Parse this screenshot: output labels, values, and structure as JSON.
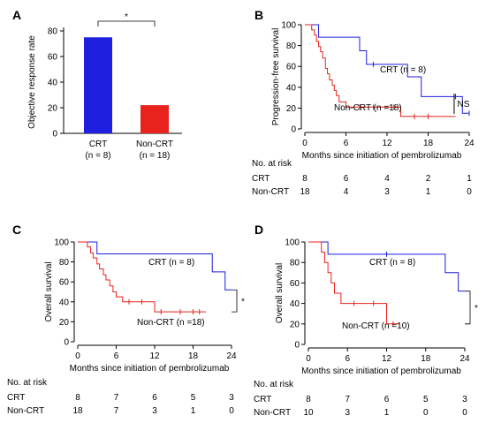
{
  "colors": {
    "crt": "#1f1fe0",
    "noncrt": "#e8221c",
    "axis": "#000000"
  },
  "panels": [
    {
      "id": "A",
      "letter": "A",
      "chart_data": {
        "type": "bar",
        "ylabel": "Objective response rate",
        "ylim": [
          0,
          80
        ],
        "yticks": [
          0,
          20,
          40,
          60,
          80
        ],
        "categories": [
          "CRT",
          "Non-CRT"
        ],
        "category_sublabels": [
          "(n = 8)",
          "(n = 18)"
        ],
        "values": [
          75,
          22
        ],
        "bar_colors": [
          "#1f1fe0",
          "#e8221c"
        ],
        "significance": "*"
      }
    },
    {
      "id": "B",
      "letter": "B",
      "chart_data": {
        "type": "line",
        "step": true,
        "ylabel": "Progression-free survival",
        "xlabel": "Months since initiation of pembrolizumab",
        "xlim": [
          0,
          24
        ],
        "ylim": [
          0,
          100
        ],
        "xticks": [
          0,
          6,
          12,
          18,
          24
        ],
        "yticks": [
          0,
          20,
          40,
          60,
          80,
          100
        ],
        "series": [
          {
            "name": "CRT (n = 8)",
            "color": "#1f1fe0",
            "points": [
              [
                0,
                100
              ],
              [
                2,
                88
              ],
              [
                8,
                75
              ],
              [
                9,
                62
              ],
              [
                15,
                50
              ],
              [
                17,
                31
              ],
              [
                23,
                15
              ],
              [
                24,
                15
              ]
            ],
            "censors": [
              [
                10,
                62
              ],
              [
                22,
                31
              ],
              [
                24,
                15
              ]
            ]
          },
          {
            "name": "Non-CRT (n =18)",
            "color": "#e8221c",
            "points": [
              [
                0,
                100
              ],
              [
                1,
                95
              ],
              [
                1.4,
                90
              ],
              [
                1.7,
                84
              ],
              [
                2,
                79
              ],
              [
                2.3,
                74
              ],
              [
                2.6,
                68
              ],
              [
                3,
                58
              ],
              [
                3.3,
                53
              ],
              [
                3.6,
                47
              ],
              [
                4,
                42
              ],
              [
                4.3,
                37
              ],
              [
                4.6,
                32
              ],
              [
                5,
                26
              ],
              [
                6,
                21
              ],
              [
                14,
                12
              ],
              [
                22,
                12
              ]
            ],
            "censors": [
              [
                8,
                21
              ],
              [
                10,
                21
              ],
              [
                13,
                21
              ],
              [
                16,
                12
              ],
              [
                18,
                12
              ]
            ]
          }
        ],
        "annotation": "NS",
        "risk_table": {
          "title": "No. at risk",
          "times": [
            0,
            6,
            12,
            18,
            24
          ],
          "rows": [
            {
              "label": "CRT",
              "values": [
                "8",
                "6",
                "4",
                "2",
                "1"
              ]
            },
            {
              "label": "Non-CRT",
              "values": [
                "18",
                "4",
                "3",
                "1",
                "0"
              ]
            }
          ]
        }
      }
    },
    {
      "id": "C",
      "letter": "C",
      "chart_data": {
        "type": "line",
        "step": true,
        "ylabel": "Overall survival",
        "xlabel": "Months since initiation of pembrolizumab",
        "xlim": [
          0,
          24
        ],
        "ylim": [
          0,
          100
        ],
        "xticks": [
          0,
          6,
          12,
          18,
          24
        ],
        "yticks": [
          0,
          20,
          40,
          60,
          80,
          100
        ],
        "series": [
          {
            "name": "CRT (n = 8)",
            "color": "#1f1fe0",
            "points": [
              [
                0,
                100
              ],
              [
                3,
                88
              ],
              [
                21,
                70
              ],
              [
                23,
                52
              ],
              [
                24,
                52
              ]
            ],
            "censors": []
          },
          {
            "name": "Non-CRT (n =18)",
            "color": "#e8221c",
            "points": [
              [
                0,
                100
              ],
              [
                1.5,
                95
              ],
              [
                2,
                89
              ],
              [
                2.4,
                84
              ],
              [
                3,
                78
              ],
              [
                3.4,
                73
              ],
              [
                4,
                67
              ],
              [
                4.4,
                62
              ],
              [
                5,
                56
              ],
              [
                5.5,
                50
              ],
              [
                6,
                45
              ],
              [
                7,
                40
              ],
              [
                12,
                30
              ],
              [
                20,
                30
              ]
            ],
            "censors": [
              [
                8,
                40
              ],
              [
                10,
                40
              ],
              [
                13,
                30
              ],
              [
                16,
                30
              ],
              [
                18,
                30
              ],
              [
                19,
                30
              ]
            ]
          }
        ],
        "annotation": "*",
        "risk_table": {
          "title": "No. at risk",
          "times": [
            0,
            6,
            12,
            18,
            24
          ],
          "rows": [
            {
              "label": "CRT",
              "values": [
                "8",
                "7",
                "6",
                "5",
                "3"
              ]
            },
            {
              "label": "Non-CRT",
              "values": [
                "18",
                "7",
                "3",
                "1",
                "0"
              ]
            }
          ]
        }
      }
    },
    {
      "id": "D",
      "letter": "D",
      "chart_data": {
        "type": "line",
        "step": true,
        "ylabel": "Overall survival",
        "xlabel": "Months since initiation of pembrolizumab",
        "xlim": [
          0,
          24
        ],
        "ylim": [
          0,
          100
        ],
        "xticks": [
          0,
          6,
          12,
          18,
          24
        ],
        "yticks": [
          0,
          20,
          40,
          60,
          80,
          100
        ],
        "series": [
          {
            "name": "CRT (n = 8)",
            "color": "#1f1fe0",
            "points": [
              [
                0,
                100
              ],
              [
                3,
                88
              ],
              [
                21,
                70
              ],
              [
                23,
                52
              ],
              [
                24,
                52
              ]
            ],
            "censors": [
              [
                12,
                88
              ]
            ]
          },
          {
            "name": "Non-CRT (n =10)",
            "color": "#e8221c",
            "points": [
              [
                0,
                100
              ],
              [
                2,
                90
              ],
              [
                2.5,
                80
              ],
              [
                3,
                70
              ],
              [
                3.5,
                60
              ],
              [
                4,
                50
              ],
              [
                5,
                40
              ],
              [
                12,
                20
              ],
              [
                14,
                20
              ]
            ],
            "censors": [
              [
                7,
                40
              ],
              [
                10,
                40
              ],
              [
                13,
                20
              ]
            ]
          }
        ],
        "annotation": "*",
        "risk_table": {
          "title": "No. at risk",
          "times": [
            0,
            6,
            12,
            18,
            24
          ],
          "rows": [
            {
              "label": "CRT",
              "values": [
                "8",
                "7",
                "6",
                "5",
                "3"
              ]
            },
            {
              "label": "Non-CRT",
              "values": [
                "10",
                "3",
                "1",
                "0",
                "0"
              ]
            }
          ]
        }
      }
    }
  ]
}
